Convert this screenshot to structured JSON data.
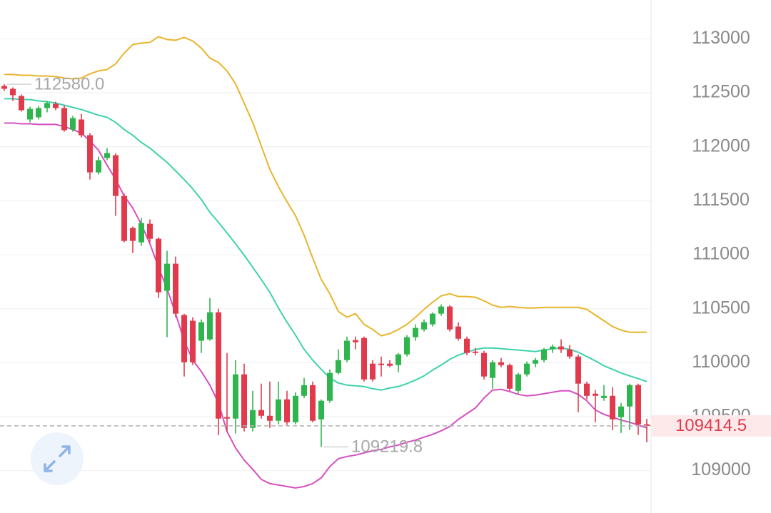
{
  "chart_data": {
    "type": "candlestick",
    "up_color": "#2fb54e",
    "down_color": "#e03a4c",
    "open": [
      112564,
      112537,
      112471,
      112253,
      112273,
      112359,
      112398,
      112359,
      112160,
      112253,
      112107,
      111763,
      111896,
      111922,
      111545,
      111248,
      111115,
      111287,
      111148,
      110666,
      110917,
      110441,
      110388,
      110203,
      110216,
      110467,
      109495,
      109482,
      109892,
      109396,
      109561,
      109508,
      109462,
      109660,
      109448,
      109693,
      109792,
      109475,
      109647,
      109905,
      110024,
      110209,
      110229,
      109991,
      109991,
      109991,
      109978,
      110077,
      110236,
      110308,
      110355,
      110454,
      110520,
      110335,
      110222,
      110103,
      110090,
      109859,
      110004,
      109978,
      109739,
      109892,
      109991,
      110024,
      110123,
      110150,
      110123,
      110057,
      109806,
      109713,
      109673,
      109693,
      109495,
      109594,
      109792,
      109429
    ],
    "high": [
      112580,
      112550,
      112484,
      112372,
      112379,
      112425,
      112418,
      112385,
      112286,
      112306,
      112127,
      111909,
      111988,
      111942,
      111565,
      111261,
      111340,
      111327,
      111162,
      111036,
      110983,
      110454,
      110421,
      110401,
      110599,
      110500,
      110090,
      110024,
      109991,
      109739,
      109806,
      109825,
      109825,
      109739,
      109726,
      109859,
      109825,
      109660,
      109938,
      110123,
      110242,
      110242,
      110242,
      110024,
      110057,
      110024,
      110090,
      110255,
      110355,
      110401,
      110467,
      110540,
      110533,
      110375,
      110242,
      110136,
      110110,
      110024,
      110044,
      109991,
      109905,
      110011,
      110044,
      110136,
      110169,
      110216,
      110163,
      110077,
      109825,
      109746,
      109792,
      109773,
      109627,
      109806,
      109806,
      109480
    ],
    "low": [
      112517,
      112425,
      112326,
      112226,
      112253,
      112319,
      112339,
      112140,
      112140,
      112087,
      111697,
      111744,
      111876,
      111360,
      111115,
      111016,
      111082,
      111115,
      110599,
      110236,
      110421,
      109872,
      109978,
      110090,
      110203,
      109329,
      109363,
      109343,
      109363,
      109363,
      109482,
      109396,
      109429,
      109422,
      109429,
      109673,
      109448,
      109219.8,
      109627,
      109892,
      110004,
      110123,
      109825,
      109825,
      109872,
      109958,
      109911,
      110057,
      110203,
      110289,
      110335,
      110434,
      110289,
      110203,
      110070,
      110070,
      109845,
      109759,
      109958,
      109739,
      109713,
      109872,
      109958,
      110004,
      110090,
      110090,
      110037,
      109541,
      109660,
      109448,
      109647,
      109376,
      109349,
      109376,
      109329,
      109263
    ],
    "close": [
      112537,
      112478,
      112339,
      112352,
      112359,
      112405,
      112359,
      112154,
      112266,
      112107,
      111763,
      111876,
      111942,
      111545,
      111128,
      111128,
      111294,
      111148,
      110652,
      110917,
      110454,
      110004,
      110004,
      110375,
      110467,
      109482,
      109482,
      109892,
      109396,
      109561,
      109508,
      109462,
      109660,
      109448,
      109693,
      109792,
      109462,
      109647,
      109905,
      110024,
      110203,
      110189,
      109845,
      109845,
      109978,
      109971,
      110077,
      110236,
      110322,
      110375,
      110454,
      110520,
      110308,
      110222,
      110090,
      110090,
      109872,
      110004,
      109978,
      109759,
      109892,
      109991,
      110024,
      110123,
      110150,
      110123,
      110057,
      109806,
      109693,
      109693,
      109693,
      109475,
      109594,
      109792,
      109429,
      109414.5
    ],
    "bands": [
      {
        "color": "#e8b52c",
        "values": [
          112670,
          112670,
          112663,
          112663,
          112656,
          112656,
          112650,
          112636,
          112630,
          112636,
          112676,
          112703,
          112716,
          112769,
          112868,
          112947,
          112961,
          112967,
          113020,
          112994,
          112987,
          113013,
          112980,
          112914,
          112822,
          112782,
          112703,
          112583,
          112405,
          112226,
          112008,
          111790,
          111631,
          111492,
          111360,
          111181,
          110970,
          110771,
          110639,
          110474,
          110421,
          110454,
          110355,
          110308,
          110249,
          110269,
          110308,
          110355,
          110421,
          110494,
          110560,
          110619,
          110639,
          110613,
          110613,
          110606,
          110573,
          110533,
          110513,
          110520,
          110513,
          110507,
          110507,
          110513,
          110513,
          110513,
          110513,
          110513,
          110494,
          110441,
          110388,
          110335,
          110302,
          110282,
          110282,
          110282
        ]
      },
      {
        "color": "#3fd2ac",
        "values": [
          112445,
          112445,
          112438,
          112438,
          112425,
          112418,
          112405,
          112385,
          112365,
          112345,
          112319,
          112293,
          112273,
          112226,
          112160,
          112107,
          112041,
          111988,
          111922,
          111856,
          111777,
          111697,
          111611,
          111512,
          111393,
          111300,
          111201,
          111102,
          110996,
          110884,
          110771,
          110652,
          110507,
          110375,
          110255,
          110123,
          110024,
          109938,
          109859,
          109812,
          109792,
          109786,
          109779,
          109759,
          109746,
          109766,
          109779,
          109806,
          109839,
          109878,
          109931,
          109978,
          110031,
          110070,
          110097,
          110123,
          110136,
          110136,
          110130,
          110123,
          110117,
          110110,
          110103,
          110117,
          110130,
          110136,
          110123,
          110097,
          110057,
          110017,
          109971,
          109938,
          109905,
          109878,
          109852,
          109825
        ]
      },
      {
        "color": "#d450c0",
        "values": [
          112220,
          112220,
          112213,
          112213,
          112207,
          112207,
          112207,
          112187,
          112160,
          112127,
          112054,
          111968,
          111830,
          111697,
          111545,
          111433,
          111281,
          111102,
          110884,
          110685,
          110454,
          110203,
          110024,
          109918,
          109792,
          109627,
          109363,
          109210,
          109098,
          109012,
          108919,
          108880,
          108867,
          108853,
          108840,
          108853,
          108880,
          108933,
          109038,
          109111,
          109131,
          109144,
          109164,
          109184,
          109197,
          109220,
          109237,
          109263,
          109283,
          109310,
          109336,
          109369,
          109409,
          109475,
          109528,
          109581,
          109673,
          109746,
          109753,
          109733,
          109706,
          109693,
          109700,
          109713,
          109726,
          109739,
          109739,
          109706,
          109647,
          109561,
          109521,
          109495,
          109468,
          109448,
          109422,
          109396
        ]
      }
    ],
    "ylim": [
      108700,
      113360
    ],
    "yticks": [
      109000,
      109500,
      110000,
      110500,
      111000,
      111500,
      112000,
      112500,
      113000
    ],
    "grid": true,
    "max_label": "112580.0",
    "min_label": "109219.8",
    "last_price_label": "109414.5"
  }
}
